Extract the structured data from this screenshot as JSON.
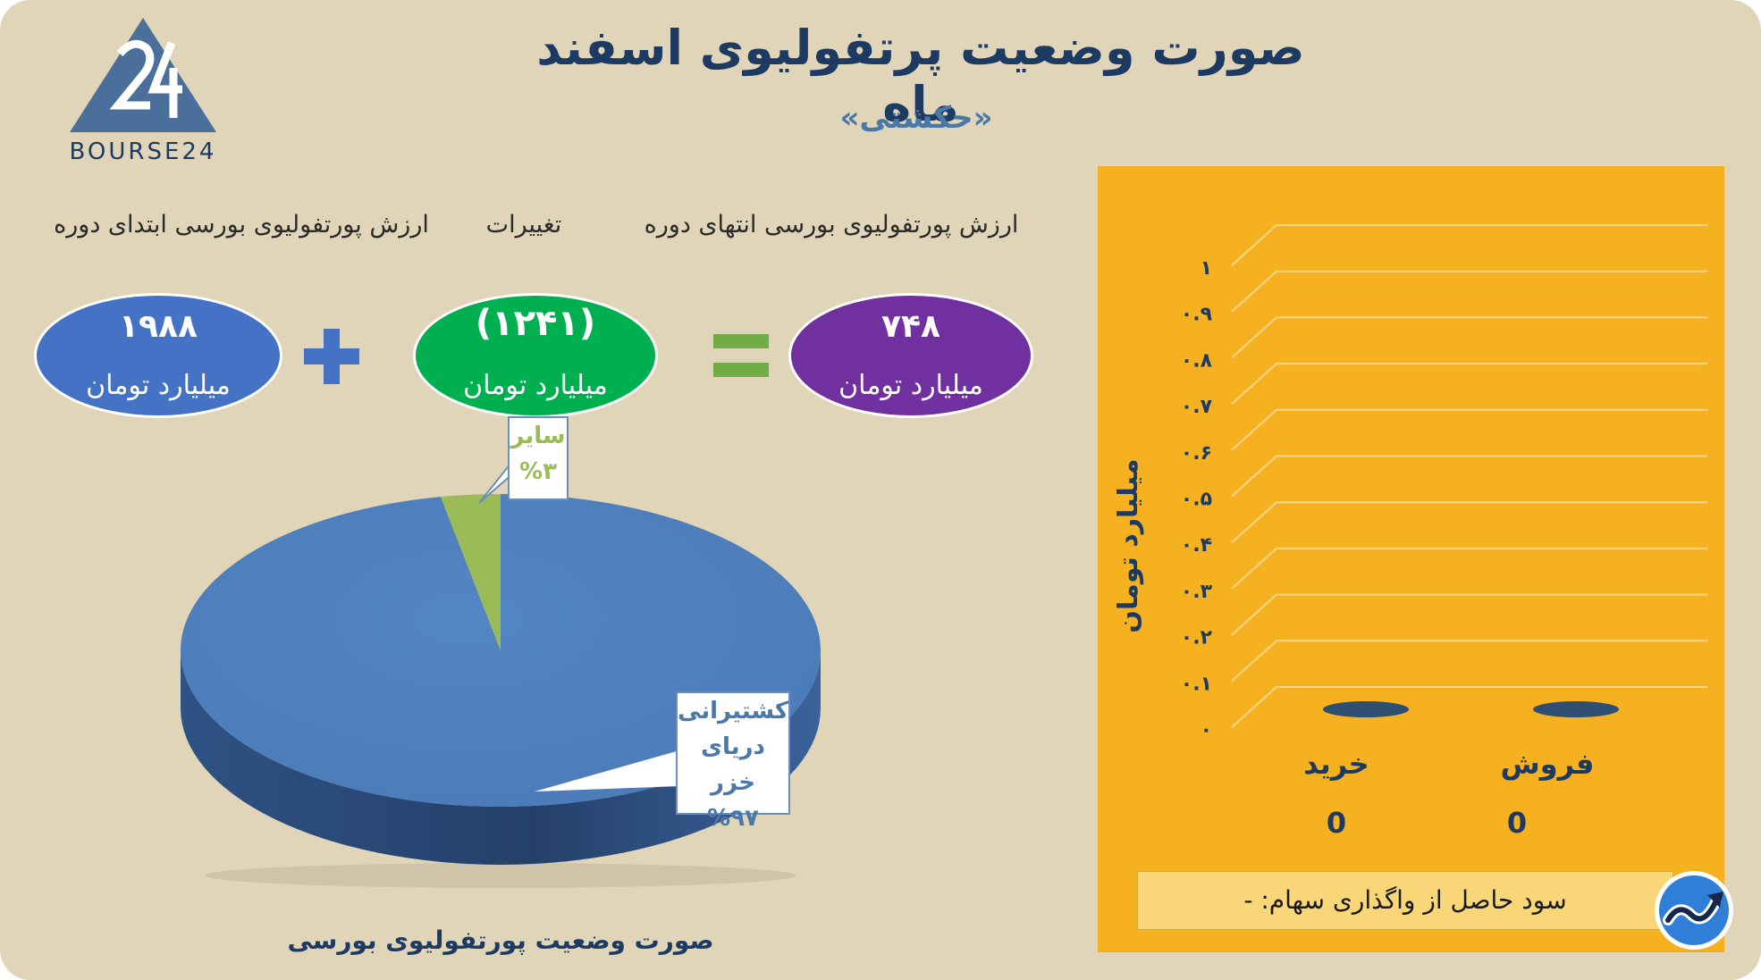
{
  "header": {
    "title": "صورت وضعیت پرتفولیوی اسفند ماه",
    "subtitle": "«حکشتی»",
    "logo_text": "BOURSE24"
  },
  "equation": {
    "label_end": "ارزش پورتفولیوی بورسی انتهای دوره",
    "label_change": "تغییرات",
    "label_start": "ارزش پورتفولیوی بورسی ابتدای دوره",
    "end_value": "۷۴۸",
    "change_value": "(۱۲۴۱)",
    "start_value": "۱۹۸۸",
    "unit": "میلیارد تومان",
    "plus_sign": "+",
    "equals_sign": "="
  },
  "colors": {
    "background": "#e0d5b8",
    "start_oval": "#4472c4",
    "change_oval": "#00b050",
    "end_oval": "#7030a0",
    "plus": "#4472c4",
    "equals": "#70ad47",
    "bar_panel": "#f5b11f",
    "pie_main": "#4f81bd",
    "pie_other": "#9bbb59"
  },
  "pie": {
    "caption": "صورت وضعیت پورتفولیوی بورسی"
  },
  "bar": {
    "profit_text": "سود حاصل از واگذاری سهام: -"
  },
  "chart_data": [
    {
      "type": "pie",
      "title": "صورت وضعیت پورتفولیوی بورسی",
      "slices": [
        {
          "label": "کشتیرانی دریای خزر",
          "label_lines": [
            "کشتیرانی",
            "دریای خزر"
          ],
          "value": 97,
          "value_text": "%۹۷"
        },
        {
          "label": "سایر",
          "label_lines": [
            "سایر"
          ],
          "value": 3,
          "value_text": "%۳"
        }
      ]
    },
    {
      "type": "bar",
      "categories": [
        "خرید",
        "فروش"
      ],
      "values": [
        0,
        0
      ],
      "value_labels": [
        "0",
        "0"
      ],
      "ylabel": "میلیارد تومان",
      "ylim": [
        0,
        1
      ],
      "yticks": [
        "۰",
        "۰.۱",
        "۰.۲",
        "۰.۳",
        "۰.۴",
        "۰.۵",
        "۰.۶",
        "۰.۷",
        "۰.۸",
        "۰.۹",
        "۱"
      ],
      "grid": true
    }
  ]
}
